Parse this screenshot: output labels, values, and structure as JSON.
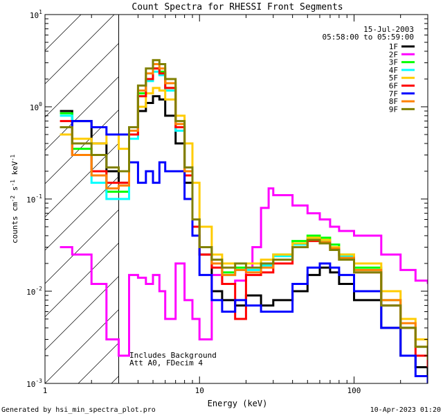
{
  "chart_data": {
    "type": "line",
    "title": "Count Spectra for RHESSI Front Segments",
    "xlabel": "Energy (keV)",
    "ylabel_parts": [
      "counts cm",
      "-2",
      " s",
      "-1",
      " keV",
      "-1"
    ],
    "x_scale": "log",
    "y_scale": "log",
    "xlim": [
      1,
      300
    ],
    "ylim": [
      0.001,
      10
    ],
    "x_ticks": [
      {
        "value": 1,
        "label": "1"
      },
      {
        "value": 10,
        "label": "10"
      },
      {
        "value": 100,
        "label": "100"
      }
    ],
    "y_ticks": [
      {
        "value": 0.001,
        "base": "10",
        "exp": "-3"
      },
      {
        "value": 0.01,
        "base": "10",
        "exp": "-2"
      },
      {
        "value": 0.1,
        "base": "10",
        "exp": "-1"
      },
      {
        "value": 1,
        "base": "10",
        "exp": "0"
      },
      {
        "value": 10,
        "base": "10",
        "exp": "1"
      }
    ],
    "excluded_region": {
      "from": 1,
      "to": 3
    },
    "date": "15-Jul-2003",
    "time_range": "05:58:00 to 05:59:00",
    "annotations": [
      "Includes Background",
      "Att A0, FDecim 4"
    ],
    "series": [
      {
        "name": "1F",
        "color": "#000000",
        "x": [
          1.25,
          1.5,
          2,
          2.5,
          3,
          3.5,
          4,
          4.5,
          5,
          5.5,
          6,
          7,
          8,
          9,
          10,
          12,
          14,
          17,
          20,
          25,
          30,
          40,
          50,
          60,
          70,
          80,
          100,
          150,
          200,
          250,
          300
        ],
        "y": [
          0.9,
          0.7,
          0.4,
          0.2,
          0.15,
          0.5,
          0.9,
          1.1,
          1.3,
          1.2,
          0.8,
          0.4,
          0.15,
          0.06,
          0.025,
          0.01,
          0.008,
          0.007,
          0.009,
          0.007,
          0.008,
          0.01,
          0.015,
          0.018,
          0.016,
          0.012,
          0.008,
          0.004,
          0.002,
          0.0015,
          0.001
        ]
      },
      {
        "name": "2F",
        "color": "#ff00ff",
        "x": [
          1.25,
          1.5,
          2,
          2.5,
          3,
          3.5,
          4,
          4.5,
          5,
          5.5,
          6,
          7,
          8,
          9,
          10,
          12,
          14,
          17,
          20,
          22,
          25,
          28,
          30,
          40,
          50,
          60,
          70,
          80,
          100,
          150,
          200,
          250,
          300
        ],
        "y": [
          0.03,
          0.025,
          0.012,
          0.003,
          0.002,
          0.015,
          0.014,
          0.012,
          0.015,
          0.01,
          0.005,
          0.02,
          0.008,
          0.005,
          0.003,
          0.015,
          0.012,
          0.013,
          0.018,
          0.03,
          0.08,
          0.13,
          0.11,
          0.085,
          0.07,
          0.06,
          0.05,
          0.045,
          0.04,
          0.025,
          0.017,
          0.013,
          0.012
        ]
      },
      {
        "name": "3F",
        "color": "#00ff00",
        "x": [
          1.25,
          1.5,
          2,
          2.5,
          3,
          3.5,
          4,
          4.5,
          5,
          5.5,
          6,
          7,
          8,
          9,
          10,
          12,
          14,
          17,
          20,
          25,
          30,
          40,
          50,
          60,
          70,
          80,
          100,
          150,
          200,
          250,
          300
        ],
        "y": [
          0.85,
          0.35,
          0.2,
          0.12,
          0.12,
          0.5,
          1.4,
          2,
          2.6,
          2.4,
          1.6,
          0.6,
          0.2,
          0.06,
          0.03,
          0.02,
          0.016,
          0.018,
          0.018,
          0.02,
          0.025,
          0.035,
          0.04,
          0.038,
          0.032,
          0.025,
          0.018,
          0.008,
          0.004,
          0.003,
          0.002
        ]
      },
      {
        "name": "4F",
        "color": "#00ffff",
        "x": [
          1.25,
          1.5,
          2,
          2.5,
          3,
          3.5,
          4,
          4.5,
          5,
          5.5,
          6,
          7,
          8,
          9,
          10,
          12,
          14,
          17,
          20,
          25,
          30,
          40,
          50,
          60,
          70,
          80,
          100,
          150,
          200,
          250,
          300
        ],
        "y": [
          0.8,
          0.3,
          0.15,
          0.1,
          0.1,
          0.45,
          1.3,
          1.9,
          2.4,
          2.2,
          1.5,
          0.55,
          0.18,
          0.05,
          0.03,
          0.02,
          0.015,
          0.017,
          0.017,
          0.019,
          0.024,
          0.032,
          0.037,
          0.035,
          0.03,
          0.024,
          0.017,
          0.007,
          0.004,
          0.0025,
          0.0018
        ]
      },
      {
        "name": "5F",
        "color": "#ffcc00",
        "x": [
          1.25,
          1.5,
          2,
          2.5,
          3,
          3.5,
          4,
          4.5,
          5,
          5.5,
          6,
          7,
          8,
          9,
          10,
          12,
          14,
          17,
          20,
          25,
          30,
          40,
          50,
          60,
          70,
          80,
          100,
          150,
          200,
          250,
          300
        ],
        "y": [
          0.5,
          0.45,
          0.4,
          0.5,
          0.35,
          0.6,
          1.0,
          1.4,
          1.6,
          1.5,
          1.2,
          0.8,
          0.4,
          0.15,
          0.05,
          0.025,
          0.02,
          0.02,
          0.02,
          0.022,
          0.025,
          0.033,
          0.038,
          0.036,
          0.03,
          0.025,
          0.02,
          0.01,
          0.005,
          0.003,
          0.002
        ]
      },
      {
        "name": "6F",
        "color": "#ff0000",
        "x": [
          1.25,
          1.5,
          2,
          2.5,
          3,
          3.5,
          4,
          4.5,
          5,
          5.5,
          6,
          7,
          8,
          9,
          10,
          12,
          14,
          17,
          20,
          25,
          30,
          40,
          50,
          60,
          70,
          80,
          100,
          150,
          200,
          250,
          300
        ],
        "y": [
          0.7,
          0.3,
          0.2,
          0.15,
          0.15,
          0.5,
          1.3,
          2,
          2.6,
          2.3,
          1.6,
          0.6,
          0.18,
          0.05,
          0.025,
          0.018,
          0.012,
          0.005,
          0.015,
          0.016,
          0.02,
          0.03,
          0.035,
          0.033,
          0.028,
          0.022,
          0.016,
          0.007,
          0.004,
          0.002,
          0.0015
        ]
      },
      {
        "name": "7F",
        "color": "#0000ff",
        "x": [
          1.25,
          1.5,
          2,
          2.5,
          3,
          3.5,
          4,
          4.5,
          5,
          5.5,
          6,
          7,
          8,
          9,
          10,
          12,
          14,
          17,
          20,
          25,
          30,
          40,
          50,
          60,
          70,
          80,
          100,
          150,
          200,
          250,
          300
        ],
        "y": [
          0.6,
          0.7,
          0.6,
          0.5,
          0.5,
          0.25,
          0.15,
          0.2,
          0.15,
          0.25,
          0.2,
          0.2,
          0.1,
          0.04,
          0.015,
          0.008,
          0.006,
          0.008,
          0.007,
          0.006,
          0.006,
          0.012,
          0.018,
          0.02,
          0.018,
          0.015,
          0.01,
          0.004,
          0.002,
          0.0012,
          0.001
        ]
      },
      {
        "name": "8F",
        "color": "#ff8000",
        "x": [
          1.25,
          1.5,
          2,
          2.5,
          3,
          3.5,
          4,
          4.5,
          5,
          5.5,
          6,
          7,
          8,
          9,
          10,
          12,
          14,
          17,
          20,
          25,
          30,
          40,
          50,
          60,
          70,
          80,
          100,
          150,
          200,
          250,
          300
        ],
        "y": [
          0.6,
          0.3,
          0.18,
          0.13,
          0.14,
          0.55,
          1.5,
          2.3,
          2.9,
          2.6,
          1.8,
          0.65,
          0.2,
          0.06,
          0.03,
          0.02,
          0.015,
          0.017,
          0.016,
          0.018,
          0.022,
          0.03,
          0.036,
          0.034,
          0.029,
          0.023,
          0.017,
          0.008,
          0.0045,
          0.0025,
          0.0018
        ]
      },
      {
        "name": "9F",
        "color": "#808000",
        "x": [
          1.25,
          1.5,
          2,
          2.5,
          3,
          3.5,
          4,
          4.5,
          5,
          5.5,
          6,
          7,
          8,
          9,
          10,
          12,
          14,
          17,
          20,
          25,
          30,
          40,
          50,
          60,
          70,
          80,
          100,
          150,
          200,
          250,
          300
        ],
        "y": [
          0.6,
          0.4,
          0.3,
          0.22,
          0.2,
          0.6,
          1.7,
          2.6,
          3.2,
          2.9,
          2.0,
          0.7,
          0.22,
          0.06,
          0.03,
          0.022,
          0.018,
          0.02,
          0.018,
          0.02,
          0.022,
          0.03,
          0.036,
          0.033,
          0.028,
          0.022,
          0.016,
          0.007,
          0.004,
          0.0025,
          0.0018
        ]
      }
    ]
  },
  "footer": {
    "generated_by": "Generated by hsi_min_spectra_plot.pro",
    "timestamp": "10-Apr-2023 01:20"
  }
}
